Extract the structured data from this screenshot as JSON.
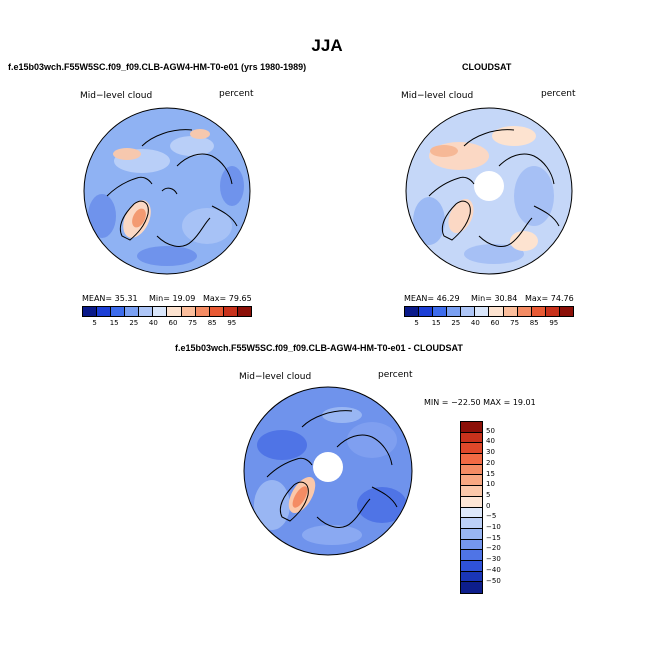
{
  "main_title": "JJA",
  "panels": [
    {
      "title": "f.e15b03wch.F55W5SC.f09_f09.CLB-AGW4-HM-T0-e01 (yrs 1980-1989)",
      "left_label": "Mid−level cloud",
      "right_label": "percent",
      "mean_text": "MEAN=  35.31",
      "min_text": "Min=  19.09",
      "max_text": "Max=  79.65"
    },
    {
      "title": "CLOUDSAT",
      "left_label": "Mid−level cloud",
      "right_label": "percent",
      "mean_text": "MEAN=  46.29",
      "min_text": "Min=  30.84",
      "max_text": "Max=  74.76"
    },
    {
      "title": "f.e15b03wch.F55W5SC.f09_f09.CLB-AGW4-HM-T0-e01 - CLOUDSAT",
      "left_label": "Mid−level cloud",
      "right_label": "percent",
      "minmax_text": "MIN = −22.50  MAX =   19.01"
    }
  ],
  "colorbar_abs": {
    "labels": [
      "5",
      "15",
      "25",
      "40",
      "60",
      "75",
      "85",
      "95"
    ],
    "colors": [
      "#0a1a8a",
      "#1c3fd6",
      "#3d6cec",
      "#7aa0f2",
      "#aec6f7",
      "#d9e6fb",
      "#fde3d0",
      "#fbbe9c",
      "#f48c64",
      "#e85a34",
      "#c8321c",
      "#8c1008"
    ]
  },
  "colorbar_diff": {
    "labels": [
      "50",
      "40",
      "30",
      "20",
      "15",
      "10",
      "5",
      "0",
      "−5",
      "−10",
      "−15",
      "−20",
      "−30",
      "−40",
      "−50"
    ],
    "colors": [
      "#8c1008",
      "#c8321c",
      "#e0482a",
      "#f26a44",
      "#f48c64",
      "#f8a882",
      "#fbc8aa",
      "#fde6d6",
      "#dde8fb",
      "#bcd0f7",
      "#99b6f3",
      "#7597ee",
      "#4f74e6",
      "#2f52d9",
      "#1a36b8",
      "#0d1e8c"
    ]
  }
}
